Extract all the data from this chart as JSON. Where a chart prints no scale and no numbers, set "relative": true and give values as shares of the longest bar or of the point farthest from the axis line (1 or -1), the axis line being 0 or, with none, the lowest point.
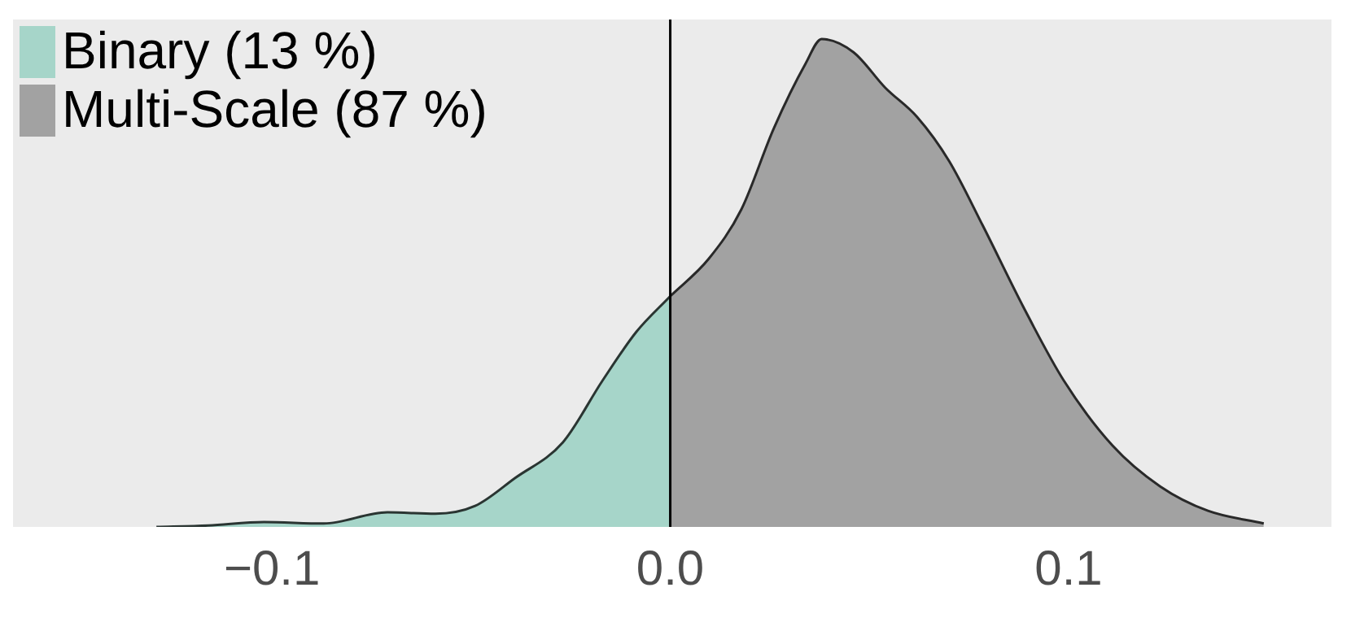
{
  "chart_data": {
    "type": "area",
    "relative": true,
    "xlim": [
      -0.165,
      0.166
    ],
    "xticks": [
      {
        "value": -0.1,
        "label": "−0.1"
      },
      {
        "value": 0,
        "label": "0.0"
      },
      {
        "value": 0.1,
        "label": "0.1"
      }
    ],
    "series": [
      {
        "name": "Binary (13 %)",
        "color": "#a6d5c9",
        "x": [
          -0.129,
          -0.116,
          -0.102,
          -0.087,
          -0.071,
          -0.059,
          -0.049,
          -0.039,
          -0.027,
          -0.017,
          -0.0085,
          0
        ],
        "values": [
          0,
          0.003,
          0.01,
          0.007,
          0.03,
          0.027,
          0.043,
          0.1,
          0.173,
          0.3,
          0.4,
          0.473
        ]
      },
      {
        "name": "Multi-Scale (87 %)",
        "color": "#a2a2a2",
        "x": [
          0,
          0.0097,
          0.0178,
          0.026,
          0.034,
          0.038,
          0.046,
          0.054,
          0.062,
          0.07,
          0.0785,
          0.0887,
          0.0988,
          0.111,
          0.123,
          0.135,
          0.149
        ],
        "values": [
          0.473,
          0.55,
          0.65,
          0.817,
          0.95,
          1,
          0.973,
          0.9,
          0.84,
          0.75,
          0.617,
          0.45,
          0.3,
          0.167,
          0.083,
          0.033,
          0.007
        ]
      }
    ],
    "ref_lines": [
      {
        "axis": "x",
        "value": 0,
        "color": "#000000"
      }
    ],
    "legend": "top left",
    "grid": false
  }
}
